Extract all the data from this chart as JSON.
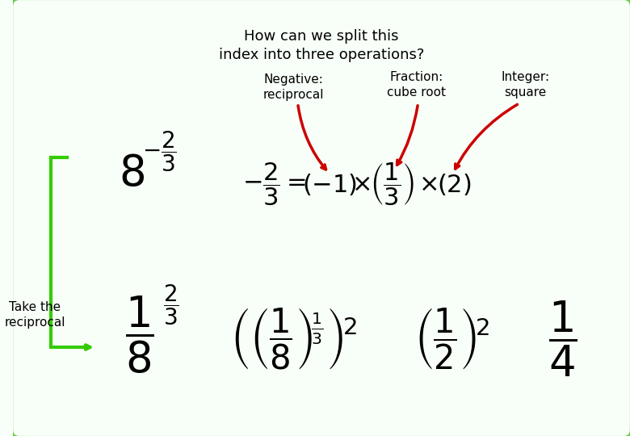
{
  "title_line1": "How can we split this",
  "title_line2": "index into three operations?",
  "bg_color": "#f8fff8",
  "border_color": "#66cc44",
  "text_color": "#000000",
  "red_color": "#cc0000",
  "green_color": "#33cc00",
  "label_negative": "Negative:\nreciprocal",
  "label_fraction": "Fraction:\ncube root",
  "label_integer": "Integer:\nsquare",
  "take_reciprocal": "Take the\nreciprocal"
}
